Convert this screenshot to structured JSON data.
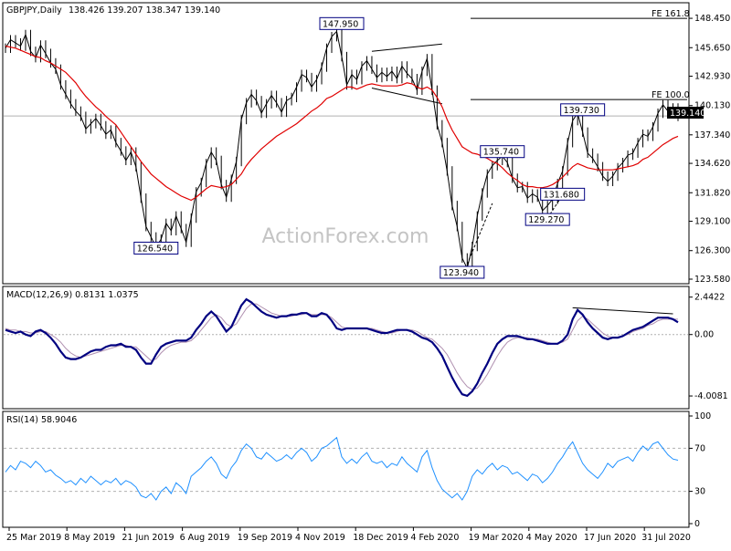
{
  "header": {
    "symbol": "GBPJPY,Daily",
    "ohlc": "138.426 139.207 138.347 139.140",
    "current_price": "139.140"
  },
  "watermark": "ActionForex.com",
  "colors": {
    "price": "#000000",
    "ma": "#e00000",
    "macd": "#000080",
    "signal": "#b090b0",
    "rsi": "#1e90ff",
    "label_border": "#000080",
    "grid": "#b0b0b0"
  },
  "chart_data": [
    {
      "type": "line",
      "panel": "price",
      "title": "GBPJPY,Daily",
      "y_ticks": [
        "148.450",
        "145.650",
        "142.930",
        "140.130",
        "137.340",
        "134.620",
        "131.820",
        "129.100",
        "126.300",
        "123.580"
      ],
      "ylim": [
        123.58,
        149.5
      ],
      "x_ticks": [
        "25 Mar 2019",
        "8 May 2019",
        "21 Jun 2019",
        "6 Aug 2019",
        "19 Sep 2019",
        "4 Nov 2019",
        "18 Dec 2019",
        "4 Feb 2020",
        "19 Mar 2020",
        "4 May 2020",
        "17 Jun 2020",
        "31 Jul 2020"
      ],
      "series": [
        {
          "values": [
            145.6,
            146.4,
            146.1,
            145.8,
            146.9,
            145.3,
            144.7,
            145.9,
            145.1,
            144.2,
            143.6,
            142.1,
            141.2,
            140.3,
            139.6,
            139.1,
            137.9,
            138.4,
            138.9,
            138.2,
            137.4,
            137.8,
            136.6,
            135.8,
            134.9,
            135.7,
            134.3,
            131.3,
            128.6,
            127.6,
            126.6,
            127.4,
            128.9,
            128.2,
            129.6,
            128.4,
            127.1,
            129.4,
            131.9,
            132.8,
            134.6,
            135.7,
            134.9,
            132.6,
            131.4,
            133.1,
            134.8,
            138.8,
            140.4,
            141.2,
            140.6,
            139.4,
            140.3,
            141.1,
            140.4,
            139.5,
            140.6,
            140.9,
            141.9,
            143.1,
            142.8,
            141.9,
            142.6,
            143.8,
            145.6,
            146.7,
            147.2,
            144.8,
            142.1,
            143.1,
            142.6,
            143.9,
            144.4,
            143.6,
            142.8,
            143.3,
            142.9,
            143.4,
            142.7,
            143.9,
            143.2,
            142.7,
            141.6,
            143.4,
            144.6,
            141.6,
            138.3,
            136.6,
            133.9,
            130.6,
            128.6,
            125.6,
            124.6,
            126.7,
            129.6,
            131.8,
            133.6,
            134.4,
            134.9,
            135.3,
            134.7,
            133.2,
            132.3,
            132.4,
            131.3,
            131.7,
            131.4,
            130.1,
            130.6,
            131.2,
            132.7,
            133.9,
            136.6,
            138.7,
            139.4,
            137.6,
            135.6,
            135.1,
            134.3,
            133.4,
            132.9,
            133.4,
            134.2,
            134.7,
            135.4,
            135.6,
            136.6,
            137.4,
            137.2,
            138.1,
            139.4,
            140.2,
            139.6,
            139.9,
            139.1
          ]
        },
        {
          "name": "",
          "values": [
            145.8,
            145.7,
            145.6,
            145.4,
            145.2,
            145.0,
            144.8,
            144.7,
            144.4,
            144.2,
            143.9,
            143.6,
            143.3,
            142.8,
            142.3,
            141.6,
            141.0,
            140.5,
            140.0,
            139.6,
            139.1,
            138.7,
            138.3,
            137.6,
            136.9,
            136.2,
            135.5,
            134.8,
            134.2,
            133.6,
            133.2,
            132.8,
            132.4,
            132.1,
            131.8,
            131.5,
            131.3,
            131.1,
            131.4,
            131.8,
            132.2,
            132.5,
            132.4,
            132.3,
            132.4,
            132.6,
            133.1,
            133.6,
            134.4,
            135.0,
            135.5,
            136.0,
            136.4,
            136.8,
            137.2,
            137.5,
            137.8,
            138.1,
            138.4,
            138.8,
            139.2,
            139.6,
            139.9,
            140.3,
            140.8,
            141.0,
            141.3,
            141.6,
            141.9,
            141.9,
            141.7,
            141.9,
            142.1,
            142.2,
            142.1,
            142.0,
            142.0,
            142.0,
            142.0,
            142.1,
            142.3,
            142.2,
            141.9,
            141.7,
            141.9,
            141.6,
            140.9,
            140.0,
            138.8,
            137.8,
            137.0,
            136.2,
            135.9,
            135.6,
            135.5,
            135.3,
            135.1,
            134.8,
            134.6,
            134.2,
            133.7,
            133.3,
            133.0,
            132.6,
            132.4,
            132.4,
            132.3,
            132.3,
            132.4,
            132.6,
            132.9,
            133.3,
            133.8,
            134.3,
            134.6,
            134.4,
            134.2,
            134.1,
            134.0,
            134.0,
            134.0,
            134.0,
            134.1,
            134.2,
            134.3,
            134.4,
            134.6,
            135.0,
            135.2,
            135.6,
            136.0,
            136.4,
            136.7,
            137.0,
            137.2
          ]
        }
      ],
      "annotations": [
        {
          "label": "147.950",
          "x": 67,
          "y": 147.95
        },
        {
          "label": "126.540",
          "x": 30,
          "y": 126.54
        },
        {
          "label": "139.730",
          "x": 115,
          "y": 139.73
        },
        {
          "label": "135.740",
          "x": 99,
          "y": 135.74
        },
        {
          "label": "131.680",
          "x": 111,
          "y": 131.68
        },
        {
          "label": "129.270",
          "x": 108,
          "y": 129.27
        },
        {
          "label": "123.940",
          "x": 91,
          "y": 123.94
        }
      ],
      "fib_levels": [
        {
          "label": "FE 161.8",
          "y": 148.45
        },
        {
          "label": "FE 100.0",
          "y": 140.7
        }
      ]
    },
    {
      "type": "line",
      "panel": "macd",
      "title": "MACD(12,26,9) 0.8131 1.0375",
      "y_ticks": [
        "2.4422",
        "0.00",
        "-4.0081"
      ],
      "ylim": [
        -4.6,
        2.9
      ],
      "series": [
        {
          "name": "MACD",
          "values": [
            0.3,
            0.2,
            0.1,
            0.2,
            0.0,
            -0.1,
            0.2,
            0.3,
            0.1,
            -0.2,
            -0.6,
            -1.1,
            -1.5,
            -1.6,
            -1.6,
            -1.5,
            -1.3,
            -1.1,
            -1.0,
            -1.0,
            -0.8,
            -0.7,
            -0.7,
            -0.6,
            -0.8,
            -0.8,
            -1.0,
            -1.5,
            -1.9,
            -1.9,
            -1.3,
            -0.8,
            -0.6,
            -0.5,
            -0.4,
            -0.4,
            -0.4,
            -0.2,
            0.3,
            0.7,
            1.2,
            1.5,
            1.2,
            0.7,
            0.2,
            0.5,
            1.2,
            1.9,
            2.3,
            2.1,
            1.8,
            1.5,
            1.3,
            1.2,
            1.1,
            1.2,
            1.2,
            1.3,
            1.3,
            1.4,
            1.4,
            1.2,
            1.2,
            1.4,
            1.3,
            0.9,
            0.4,
            0.3,
            0.4,
            0.4,
            0.4,
            0.4,
            0.4,
            0.3,
            0.2,
            0.1,
            0.1,
            0.2,
            0.3,
            0.3,
            0.3,
            0.2,
            0.0,
            -0.2,
            -0.3,
            -0.5,
            -0.9,
            -1.4,
            -2.1,
            -2.8,
            -3.4,
            -3.9,
            -4.0,
            -3.7,
            -3.2,
            -2.5,
            -1.9,
            -1.2,
            -0.6,
            -0.3,
            -0.1,
            -0.1,
            -0.1,
            -0.2,
            -0.3,
            -0.3,
            -0.4,
            -0.5,
            -0.6,
            -0.6,
            -0.6,
            -0.4,
            0.0,
            1.0,
            1.6,
            1.3,
            0.8,
            0.4,
            0.1,
            -0.2,
            -0.3,
            -0.2,
            -0.2,
            -0.1,
            0.1,
            0.3,
            0.4,
            0.5,
            0.7,
            0.9,
            1.1,
            1.1,
            1.1,
            1.0,
            0.8
          ]
        },
        {
          "name": "Signal",
          "values": [
            0.4,
            0.3,
            0.3,
            0.2,
            0.2,
            0.1,
            0.1,
            0.2,
            0.2,
            0.0,
            -0.2,
            -0.5,
            -0.9,
            -1.2,
            -1.4,
            -1.5,
            -1.4,
            -1.3,
            -1.2,
            -1.1,
            -1.0,
            -0.9,
            -0.8,
            -0.7,
            -0.7,
            -0.8,
            -0.8,
            -1.1,
            -1.4,
            -1.7,
            -1.6,
            -1.2,
            -0.9,
            -0.7,
            -0.6,
            -0.5,
            -0.5,
            -0.4,
            -0.1,
            0.3,
            0.7,
            1.1,
            1.3,
            1.1,
            0.7,
            0.5,
            0.7,
            1.2,
            1.7,
            2.0,
            2.0,
            1.8,
            1.6,
            1.4,
            1.3,
            1.2,
            1.2,
            1.2,
            1.3,
            1.3,
            1.4,
            1.3,
            1.3,
            1.3,
            1.3,
            1.1,
            0.8,
            0.5,
            0.4,
            0.4,
            0.4,
            0.4,
            0.4,
            0.4,
            0.3,
            0.2,
            0.1,
            0.1,
            0.2,
            0.3,
            0.3,
            0.3,
            0.2,
            0.0,
            -0.2,
            -0.3,
            -0.6,
            -0.9,
            -1.3,
            -1.9,
            -2.5,
            -3.0,
            -3.4,
            -3.6,
            -3.5,
            -3.1,
            -2.6,
            -2.0,
            -1.4,
            -0.9,
            -0.5,
            -0.3,
            -0.2,
            -0.2,
            -0.2,
            -0.3,
            -0.3,
            -0.4,
            -0.5,
            -0.6,
            -0.6,
            -0.5,
            -0.3,
            0.3,
            0.9,
            1.2,
            1.0,
            0.7,
            0.4,
            0.1,
            -0.1,
            -0.2,
            -0.2,
            -0.1,
            0.0,
            0.2,
            0.3,
            0.4,
            0.6,
            0.7,
            0.9,
            1.0,
            1.0,
            1.0,
            1.0
          ]
        }
      ]
    },
    {
      "type": "line",
      "panel": "rsi",
      "title": "RSI(14) 58.9046",
      "y_ticks": [
        "100",
        "70",
        "30",
        "0"
      ],
      "ylim": [
        0,
        100
      ],
      "levels": [
        70,
        30
      ],
      "series": [
        {
          "name": "RSI",
          "values": [
            48,
            54,
            50,
            58,
            56,
            52,
            58,
            54,
            48,
            50,
            45,
            42,
            38,
            40,
            36,
            42,
            38,
            44,
            40,
            36,
            40,
            38,
            42,
            36,
            40,
            38,
            34,
            26,
            24,
            28,
            22,
            30,
            34,
            28,
            38,
            34,
            28,
            44,
            48,
            52,
            58,
            62,
            56,
            46,
            42,
            52,
            58,
            68,
            74,
            70,
            62,
            60,
            66,
            62,
            58,
            60,
            64,
            60,
            66,
            70,
            66,
            58,
            62,
            70,
            72,
            76,
            80,
            62,
            56,
            60,
            56,
            62,
            66,
            58,
            56,
            58,
            52,
            56,
            54,
            62,
            56,
            52,
            48,
            62,
            68,
            52,
            40,
            32,
            28,
            24,
            28,
            22,
            30,
            44,
            50,
            46,
            52,
            56,
            50,
            54,
            52,
            46,
            48,
            44,
            40,
            46,
            44,
            38,
            42,
            48,
            56,
            62,
            70,
            76,
            66,
            56,
            50,
            46,
            42,
            48,
            56,
            52,
            58,
            60,
            62,
            58,
            66,
            72,
            68,
            74,
            76,
            70,
            64,
            60,
            58.9
          ]
        }
      ]
    }
  ]
}
